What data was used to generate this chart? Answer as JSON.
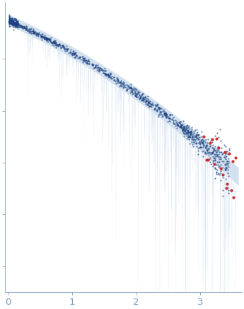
{
  "title": "",
  "xlabel": "",
  "ylabel": "",
  "xlim": [
    -0.05,
    3.65
  ],
  "ylim": [
    -4.5,
    1.1
  ],
  "x_ticks": [
    0,
    1,
    2,
    3
  ],
  "bg_color": "#ffffff",
  "error_band_color": "#c5d8ea",
  "error_band_alpha": 0.75,
  "scatter_blue_color": "#1a4080",
  "scatter_red_color": "#cc2222",
  "seed": 12345
}
